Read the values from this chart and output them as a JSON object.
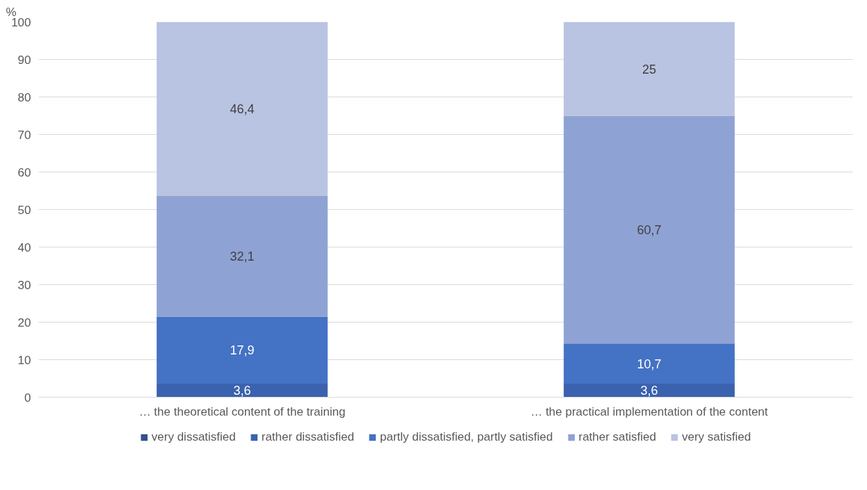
{
  "chart_data": {
    "type": "bar",
    "stacked": true,
    "ylabel": "%",
    "categories": [
      "… the theoretical content of the training",
      "… the practical implementation of the content"
    ],
    "series": [
      {
        "name": "very dissatisfied",
        "color": "#2f528f",
        "values": [
          0,
          0
        ],
        "value_labels": [
          null,
          null
        ]
      },
      {
        "name": "rather dissatisfied",
        "color": "#3a62ae",
        "values": [
          3.6,
          3.6
        ],
        "value_labels": [
          "3,6",
          "3,6"
        ]
      },
      {
        "name": "partly dissatisfied, partly satisfied",
        "color": "#4472c4",
        "values": [
          17.9,
          10.7
        ],
        "value_labels": [
          "17,9",
          "10,7"
        ]
      },
      {
        "name": "rather satisfied",
        "color": "#8fa2d4",
        "values": [
          32.1,
          60.7
        ],
        "value_labels": [
          "32,1",
          "60,7"
        ]
      },
      {
        "name": "very satisfied",
        "color": "#b9c3e2",
        "values": [
          46.4,
          25
        ],
        "value_labels": [
          "46,4",
          "25"
        ]
      }
    ],
    "ylim": [
      0,
      100
    ],
    "yticks": [
      0,
      10,
      20,
      30,
      40,
      50,
      60,
      70,
      80,
      90,
      100
    ],
    "grid": "y",
    "legend": "bottom"
  }
}
